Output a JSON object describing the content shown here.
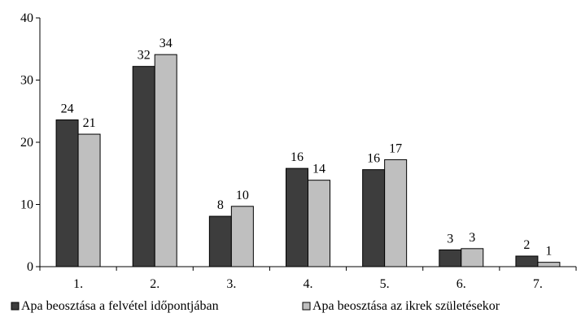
{
  "chart_data": {
    "type": "bar",
    "title": "",
    "xlabel": "",
    "ylabel": "",
    "categories": [
      "1.",
      "2.",
      "3.",
      "4.",
      "5.",
      "6.",
      "7."
    ],
    "ylim": [
      0,
      40
    ],
    "yticks": [
      "0",
      "10",
      "20",
      "30",
      "40"
    ],
    "grid": false,
    "legend_position": "bottom",
    "series": [
      {
        "name": "Apa beosztása a felvétel időpontjában",
        "values": [
          23.6,
          32.2,
          8.1,
          15.8,
          15.6,
          2.7,
          1.7
        ],
        "labels": [
          "24",
          "32",
          "8",
          "16",
          "16",
          "3",
          "2"
        ],
        "color": "#3d3d3d"
      },
      {
        "name": "Apa beosztása az ikrek születésekor",
        "values": [
          21.3,
          34.1,
          9.7,
          13.9,
          17.2,
          2.9,
          0.7
        ],
        "labels": [
          "21",
          "34",
          "10",
          "14",
          "17",
          "3",
          "1"
        ],
        "color": "#bfbfbf"
      }
    ]
  }
}
